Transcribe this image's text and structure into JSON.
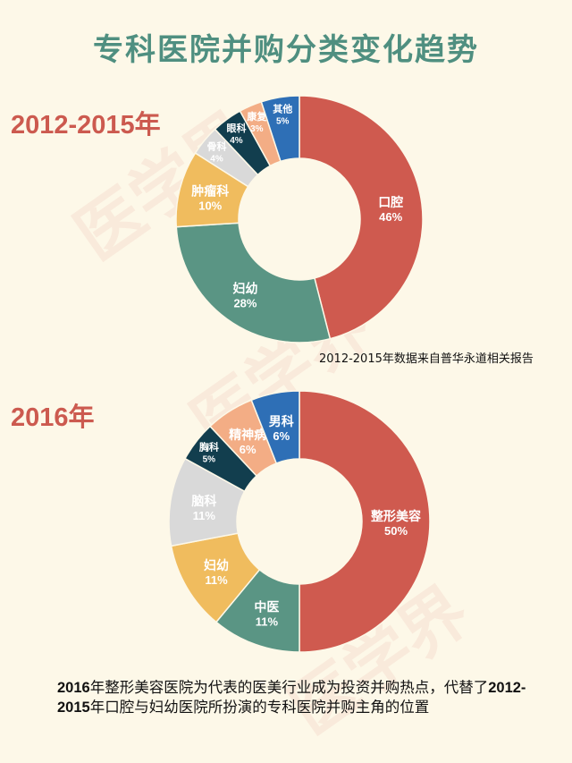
{
  "title": "专科医院并购分类变化趋势",
  "watermark": "医学界",
  "chart_data": [
    {
      "type": "pie",
      "donut": true,
      "section_label": "2012-2015年",
      "slices": [
        {
          "label": "口腔",
          "value": 46,
          "value_label": "46%",
          "color": "#cf5a4f"
        },
        {
          "label": "妇幼",
          "value": 28,
          "value_label": "28%",
          "color": "#5a9584"
        },
        {
          "label": "肿瘤科",
          "value": 10,
          "value_label": "10%",
          "color": "#f0bc5e"
        },
        {
          "label": "骨科",
          "value": 4,
          "value_label": "4%",
          "color": "#d9d9d9"
        },
        {
          "label": "眼科",
          "value": 4,
          "value_label": "4%",
          "color": "#123e4e"
        },
        {
          "label": "康复",
          "value": 3,
          "value_label": "3%",
          "color": "#f3ad85"
        },
        {
          "label": "其他",
          "value": 5,
          "value_label": "5%",
          "color": "#2e6fb6"
        }
      ],
      "source": "2012-2015年数据来自普华永道相关报告"
    },
    {
      "type": "pie",
      "donut": true,
      "section_label": "2016年",
      "slices": [
        {
          "label": "整形美容",
          "value": 50,
          "value_label": "50%",
          "color": "#cf5a4f"
        },
        {
          "label": "中医",
          "value": 11,
          "value_label": "11%",
          "color": "#5a9584"
        },
        {
          "label": "妇幼",
          "value": 11,
          "value_label": "11%",
          "color": "#f0bc5e"
        },
        {
          "label": "脑科",
          "value": 11,
          "value_label": "11%",
          "color": "#d9d9d9"
        },
        {
          "label": "胸科",
          "value": 5,
          "value_label": "5%",
          "color": "#123e4e"
        },
        {
          "label": "精神病",
          "value": 6,
          "value_label": "6%",
          "color": "#f3ad85"
        },
        {
          "label": "男科",
          "value": 6,
          "value_label": "6%",
          "color": "#2e6fb6"
        }
      ]
    }
  ],
  "conclusion": {
    "part1_bold": "2016",
    "part2": "年整形美容医院为代表的医美行业成为投资并购热点，代替了",
    "part3_bold": "2012-2015",
    "part4": "年口腔与妇幼医院所扮演的专科医院并购主角的位置"
  }
}
